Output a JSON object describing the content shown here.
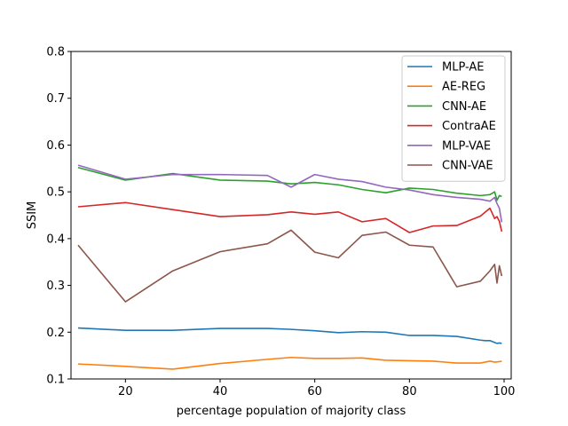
{
  "chart_data": {
    "type": "line",
    "title": "",
    "xlabel": "percentage population of majority class",
    "ylabel": "SSIM",
    "xlim": [
      8.5,
      101.5
    ],
    "ylim": [
      0.1,
      0.8
    ],
    "xticks": [
      20,
      40,
      60,
      80,
      100
    ],
    "yticks": [
      0.1,
      0.2,
      0.3,
      0.4,
      0.5,
      0.6,
      0.7,
      0.8
    ],
    "grid": false,
    "legend_position": "top-right",
    "series": [
      {
        "name": "MLP-AE",
        "color": "#1f77b4",
        "x": [
          10,
          20,
          30,
          40,
          50,
          55,
          60,
          65,
          70,
          75,
          80,
          85,
          90,
          95,
          96,
          97,
          98,
          98.5,
          99,
          99.5
        ],
        "y": [
          0.209,
          0.204,
          0.204,
          0.208,
          0.208,
          0.206,
          0.203,
          0.199,
          0.201,
          0.2,
          0.193,
          0.193,
          0.191,
          0.183,
          0.182,
          0.182,
          0.178,
          0.176,
          0.177,
          0.176
        ]
      },
      {
        "name": "AE-REG",
        "color": "#ff7f0e",
        "x": [
          10,
          20,
          30,
          40,
          50,
          55,
          60,
          65,
          70,
          75,
          80,
          85,
          90,
          95,
          97,
          98,
          99,
          99.5
        ],
        "y": [
          0.132,
          0.127,
          0.121,
          0.133,
          0.142,
          0.146,
          0.144,
          0.144,
          0.145,
          0.14,
          0.139,
          0.138,
          0.134,
          0.134,
          0.138,
          0.136,
          0.137,
          0.138
        ]
      },
      {
        "name": "CNN-AE",
        "color": "#2ca02c",
        "x": [
          10,
          20,
          30,
          40,
          50,
          55,
          60,
          65,
          70,
          75,
          80,
          85,
          90,
          95,
          97,
          98,
          98.5,
          99,
          99.5
        ],
        "y": [
          0.552,
          0.525,
          0.539,
          0.525,
          0.523,
          0.517,
          0.52,
          0.515,
          0.505,
          0.498,
          0.508,
          0.505,
          0.497,
          0.492,
          0.494,
          0.5,
          0.482,
          0.492,
          0.49
        ]
      },
      {
        "name": "ContraAE",
        "color": "#d62728",
        "x": [
          10,
          20,
          30,
          40,
          50,
          55,
          60,
          65,
          70,
          75,
          80,
          85,
          90,
          95,
          97,
          98,
          98.5,
          99,
          99.5
        ],
        "y": [
          0.468,
          0.477,
          0.462,
          0.447,
          0.451,
          0.457,
          0.452,
          0.457,
          0.436,
          0.443,
          0.413,
          0.427,
          0.428,
          0.448,
          0.465,
          0.443,
          0.447,
          0.437,
          0.415
        ]
      },
      {
        "name": "MLP-VAE",
        "color": "#9467bd",
        "x": [
          10,
          20,
          30,
          40,
          50,
          55,
          60,
          65,
          70,
          75,
          80,
          85,
          90,
          95,
          97,
          98,
          98.5,
          99,
          99.5
        ],
        "y": [
          0.557,
          0.527,
          0.537,
          0.537,
          0.535,
          0.51,
          0.537,
          0.527,
          0.522,
          0.51,
          0.504,
          0.494,
          0.488,
          0.484,
          0.48,
          0.488,
          0.475,
          0.465,
          0.435
        ]
      },
      {
        "name": "CNN-VAE",
        "color": "#8c564b",
        "x": [
          10,
          20,
          30,
          40,
          50,
          55,
          60,
          65,
          70,
          75,
          80,
          85,
          90,
          95,
          97,
          98,
          98.5,
          99,
          99.5
        ],
        "y": [
          0.386,
          0.265,
          0.331,
          0.372,
          0.389,
          0.418,
          0.371,
          0.359,
          0.407,
          0.414,
          0.386,
          0.382,
          0.297,
          0.309,
          0.331,
          0.345,
          0.305,
          0.342,
          0.32
        ]
      }
    ]
  }
}
